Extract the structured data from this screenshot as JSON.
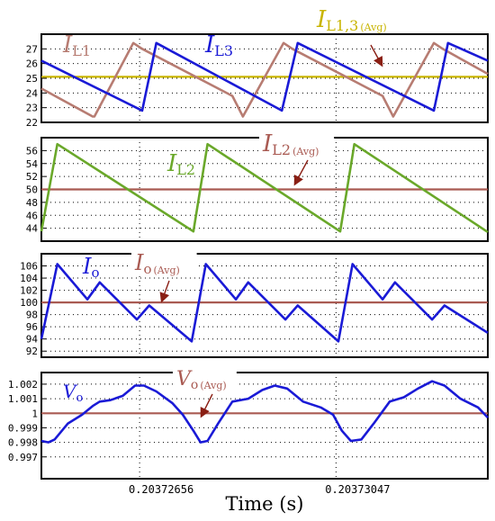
{
  "chart_data": [
    {
      "type": "line",
      "panel": 1,
      "ylim": [
        22,
        28
      ],
      "y_ticks": [
        "27",
        "26",
        "25",
        "24",
        "23",
        "22"
      ],
      "x_ticks": [],
      "grid": true,
      "series": [
        {
          "name": "I_L1",
          "label_main": "I",
          "label_sub": "L1",
          "color": "#b77c72",
          "x": [
            0,
            58,
            60,
            104,
            114,
            216,
            228,
            274,
            284,
            386,
            398,
            444,
            454,
            502,
            505
          ],
          "y": [
            24.3,
            22.4,
            22.4,
            27.4,
            27.0,
            23.8,
            22.4,
            27.4,
            27.0,
            23.8,
            22.4,
            27.4,
            27.0,
            25.4,
            25.3
          ]
        },
        {
          "name": "I_L3",
          "label_main": "I",
          "label_sub": "L3",
          "color": "#1a1ad6",
          "x": [
            0,
            114,
            130,
            272,
            290,
            444,
            460,
            505
          ],
          "y": [
            26.2,
            22.8,
            27.4,
            22.8,
            27.4,
            22.8,
            27.4,
            26.2
          ]
        },
        {
          "name": "I_L1,3 (Avg)",
          "label_main": "I",
          "label_sub": "L1,3",
          "label_avg": "(Avg)",
          "color": "#c8b400",
          "x": [
            0,
            505
          ],
          "y": [
            25.1,
            25.1
          ]
        }
      ]
    },
    {
      "type": "line",
      "panel": 2,
      "ylim": [
        42,
        58
      ],
      "y_ticks": [
        "56",
        "54",
        "52",
        "50",
        "48",
        "46",
        "44"
      ],
      "x_ticks": [],
      "grid": true,
      "series": [
        {
          "name": "I_L2",
          "label_main": "I",
          "label_sub": "L2",
          "color": "#6aa82a",
          "x": [
            0,
            18,
            172,
            188,
            338,
            354,
            505
          ],
          "y": [
            43.5,
            57.0,
            43.5,
            57.0,
            43.5,
            57.0,
            43.4
          ]
        },
        {
          "name": "I_L2 (Avg)",
          "label_main": "I",
          "label_sub": "L2",
          "label_avg": "(Avg)",
          "color": "#a95a52",
          "x": [
            0,
            505
          ],
          "y": [
            50,
            50
          ]
        }
      ]
    },
    {
      "type": "line",
      "panel": 3,
      "ylim": [
        91,
        108
      ],
      "y_ticks": [
        "106",
        "104",
        "102",
        "100",
        "98",
        "96",
        "94",
        "92"
      ],
      "x_ticks": [],
      "grid": true,
      "series": [
        {
          "name": "I_o",
          "label_main": "I",
          "label_sub": "o",
          "color": "#1a1ad6",
          "x": [
            0,
            18,
            52,
            66,
            108,
            122,
            170,
            186,
            220,
            234,
            276,
            290,
            336,
            352,
            386,
            400,
            442,
            456,
            505
          ],
          "y": [
            94,
            106.3,
            100.5,
            103.3,
            97.2,
            99.5,
            93.6,
            106.3,
            100.5,
            103.3,
            97.2,
            99.5,
            93.6,
            106.3,
            100.5,
            103.3,
            97.2,
            99.5,
            95
          ]
        },
        {
          "name": "I_o (Avg)",
          "label_main": "I",
          "label_sub": "o",
          "label_avg": "(Avg)",
          "color": "#a95a52",
          "x": [
            0,
            505
          ],
          "y": [
            100,
            100
          ]
        }
      ]
    },
    {
      "type": "line",
      "panel": 4,
      "ylim": [
        0.9955,
        1.0028
      ],
      "y_ticks": [
        "1.002",
        "1.001",
        "1",
        "0.999",
        "0.998",
        "0.997"
      ],
      "x_ticks": [
        "0.20372656",
        "0.20373047"
      ],
      "grid": true,
      "xlabel": "Time (s)",
      "series": [
        {
          "name": "V_o",
          "label_main": "V",
          "label_sub": "o",
          "color": "#1a1ad6",
          "x": [
            0,
            8,
            15,
            30,
            46,
            58,
            66,
            78,
            92,
            106,
            116,
            130,
            148,
            160,
            172,
            180,
            188,
            200,
            216,
            234,
            250,
            264,
            278,
            296,
            316,
            330,
            340,
            350,
            362,
            376,
            394,
            410,
            426,
            442,
            456,
            474,
            494,
            505
          ],
          "y": [
            0.9981,
            0.998,
            0.9982,
            0.9993,
            0.9999,
            1.0005,
            1.0008,
            1.0009,
            1.0012,
            1.0019,
            1.0019,
            1.0015,
            1.0007,
            0.9999,
            0.9988,
            0.998,
            0.9981,
            0.9993,
            1.0008,
            1.001,
            1.0016,
            1.0019,
            1.0017,
            1.0008,
            1.0004,
            0.9999,
            0.9988,
            0.9981,
            0.9982,
            0.9993,
            1.0008,
            1.0011,
            1.0017,
            1.0022,
            1.0019,
            1.001,
            1.0004,
            0.9997
          ]
        },
        {
          "name": "V_o (Avg)",
          "label_main": "V",
          "label_sub": "o",
          "label_avg": "(Avg)",
          "color": "#a95a52",
          "x": [
            0,
            505
          ],
          "y": [
            1.0,
            1.0
          ]
        }
      ]
    }
  ]
}
